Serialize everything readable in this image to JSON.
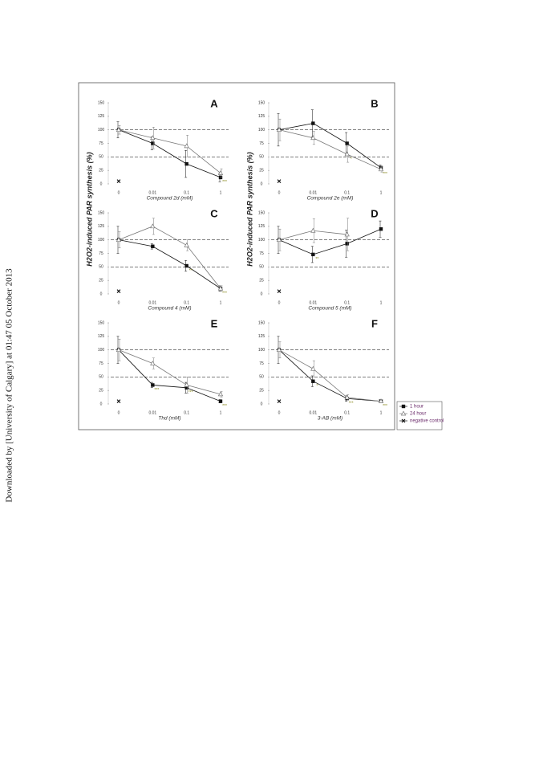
{
  "side_note": "Downloaded by [University of Calgary] at 01:47 05 October 2013",
  "chart_data": [
    {
      "type": "line",
      "title": "A",
      "xlabel": "Compound 2d (mM)",
      "categories": [
        "0",
        "0.01",
        "0.1",
        "1"
      ],
      "ylim": [
        0,
        150
      ],
      "yticks": [
        0,
        25,
        50,
        75,
        100,
        125,
        150
      ],
      "reference_lines": [
        100,
        50
      ],
      "series": [
        {
          "name": "1 hour",
          "color": "#111111",
          "marker": "square",
          "values": [
            100,
            75,
            37,
            12
          ],
          "errors": [
            15,
            12,
            25,
            8
          ]
        },
        {
          "name": "24 hour",
          "color": "#777777",
          "marker": "triangle",
          "values": [
            100,
            85,
            70,
            20
          ],
          "errors": [
            8,
            20,
            20,
            8
          ]
        },
        {
          "name": "negative control",
          "color": "#111111",
          "marker": "cross",
          "values": [
            5,
            null,
            null,
            null
          ],
          "errors": [
            null,
            null,
            null,
            null
          ]
        }
      ],
      "annotations": [
        {
          "x": "1",
          "text": "***"
        }
      ]
    },
    {
      "type": "line",
      "title": "B",
      "xlabel": "Compound 2e (mM)",
      "categories": [
        "0",
        "0.01",
        "0.1",
        "1"
      ],
      "ylim": [
        0,
        150
      ],
      "yticks": [
        0,
        25,
        50,
        75,
        100,
        125,
        150
      ],
      "reference_lines": [
        100,
        50
      ],
      "series": [
        {
          "name": "1 hour",
          "color": "#111111",
          "marker": "square",
          "values": [
            100,
            112,
            75,
            30
          ],
          "errors": [
            30,
            25,
            20,
            5
          ]
        },
        {
          "name": "24 hour",
          "color": "#777777",
          "marker": "triangle",
          "values": [
            100,
            85,
            55,
            27
          ],
          "errors": [
            20,
            12,
            15,
            5
          ]
        },
        {
          "name": "negative control",
          "color": "#111111",
          "marker": "cross",
          "values": [
            5,
            null,
            null,
            null
          ],
          "errors": [
            null,
            null,
            null,
            null
          ]
        }
      ],
      "annotations": [
        {
          "x": "0.1",
          "text": "*"
        },
        {
          "x": "1",
          "text": "***"
        }
      ]
    },
    {
      "type": "line",
      "title": "C",
      "xlabel": "Compound 4 (mM)",
      "ylabel": "H2O2-induced PAR synthesis (%)",
      "categories": [
        "0",
        "0.01",
        "0.1",
        "1"
      ],
      "ylim": [
        0,
        150
      ],
      "yticks": [
        0,
        25,
        50,
        75,
        100,
        125,
        150
      ],
      "reference_lines": [
        100,
        50
      ],
      "series": [
        {
          "name": "1 hour",
          "color": "#111111",
          "marker": "square",
          "values": [
            100,
            88,
            52,
            10
          ],
          "errors": [
            25,
            5,
            10,
            5
          ]
        },
        {
          "name": "24 hour",
          "color": "#777777",
          "marker": "triangle",
          "values": [
            100,
            125,
            90,
            10
          ],
          "errors": [
            15,
            15,
            10,
            5
          ]
        },
        {
          "name": "negative control",
          "color": "#111111",
          "marker": "cross",
          "values": [
            5,
            null,
            null,
            null
          ],
          "errors": [
            null,
            null,
            null,
            null
          ]
        }
      ],
      "annotations": [
        {
          "x": "0.1",
          "text": "**"
        },
        {
          "x": "1",
          "text": "***"
        }
      ]
    },
    {
      "type": "line",
      "title": "D",
      "xlabel": "Compound 5 (mM)",
      "ylabel": "H2O2-induced PAR synthesis (%)",
      "categories": [
        "0",
        "0.01",
        "0.1",
        "1"
      ],
      "ylim": [
        0,
        150
      ],
      "yticks": [
        0,
        25,
        50,
        75,
        100,
        125,
        150
      ],
      "reference_lines": [
        100,
        50
      ],
      "series": [
        {
          "name": "1 hour",
          "color": "#111111",
          "marker": "square",
          "values": [
            100,
            73,
            93,
            120
          ],
          "errors": [
            25,
            15,
            25,
            15
          ]
        },
        {
          "name": "24 hour",
          "color": "#777777",
          "marker": "triangle",
          "values": [
            100,
            117,
            110,
            null
          ],
          "errors": [
            20,
            22,
            30,
            null
          ]
        },
        {
          "name": "negative control",
          "color": "#111111",
          "marker": "cross",
          "values": [
            5,
            null,
            null,
            null
          ],
          "errors": [
            null,
            null,
            null,
            null
          ]
        }
      ],
      "annotations": [
        {
          "x": "0.01",
          "text": "**"
        }
      ]
    },
    {
      "type": "line",
      "title": "E",
      "xlabel": "Thd (mM)",
      "categories": [
        "0",
        "0.01",
        "0.1",
        "1"
      ],
      "ylim": [
        0,
        150
      ],
      "yticks": [
        0,
        25,
        50,
        75,
        100,
        125,
        150
      ],
      "reference_lines": [
        100,
        50
      ],
      "series": [
        {
          "name": "1 hour",
          "color": "#111111",
          "marker": "square",
          "values": [
            100,
            35,
            30,
            5
          ],
          "errors": [
            25,
            5,
            10,
            3
          ]
        },
        {
          "name": "24 hour",
          "color": "#777777",
          "marker": "triangle",
          "values": [
            100,
            75,
            35,
            18
          ],
          "errors": [
            20,
            10,
            15,
            5
          ]
        },
        {
          "name": "negative control",
          "color": "#111111",
          "marker": "cross",
          "values": [
            5,
            null,
            null,
            null
          ],
          "errors": [
            null,
            null,
            null,
            null
          ]
        }
      ],
      "annotations": [
        {
          "x": "0.01",
          "text": "***"
        },
        {
          "x": "0.1",
          "text": "***"
        },
        {
          "x": "1",
          "text": "***"
        }
      ]
    },
    {
      "type": "line",
      "title": "F",
      "xlabel": "3-AB (mM)",
      "categories": [
        "0",
        "0.01",
        "0.1",
        "1"
      ],
      "ylim": [
        0,
        150
      ],
      "yticks": [
        0,
        25,
        50,
        75,
        100,
        125,
        150
      ],
      "reference_lines": [
        100,
        50
      ],
      "series": [
        {
          "name": "1 hour",
          "color": "#111111",
          "marker": "square",
          "values": [
            100,
            42,
            10,
            5
          ],
          "errors": [
            25,
            10,
            5,
            3
          ]
        },
        {
          "name": "24 hour",
          "color": "#777777",
          "marker": "triangle",
          "values": [
            100,
            65,
            12,
            5
          ],
          "errors": [
            15,
            15,
            5,
            3
          ]
        },
        {
          "name": "negative control",
          "color": "#111111",
          "marker": "cross",
          "values": [
            5,
            null,
            null,
            null
          ],
          "errors": [
            null,
            null,
            null,
            null
          ]
        }
      ],
      "annotations": [
        {
          "x": "0.01",
          "text": "*"
        },
        {
          "x": "0.1",
          "text": "***"
        },
        {
          "x": "1",
          "text": "***"
        }
      ]
    }
  ]
}
